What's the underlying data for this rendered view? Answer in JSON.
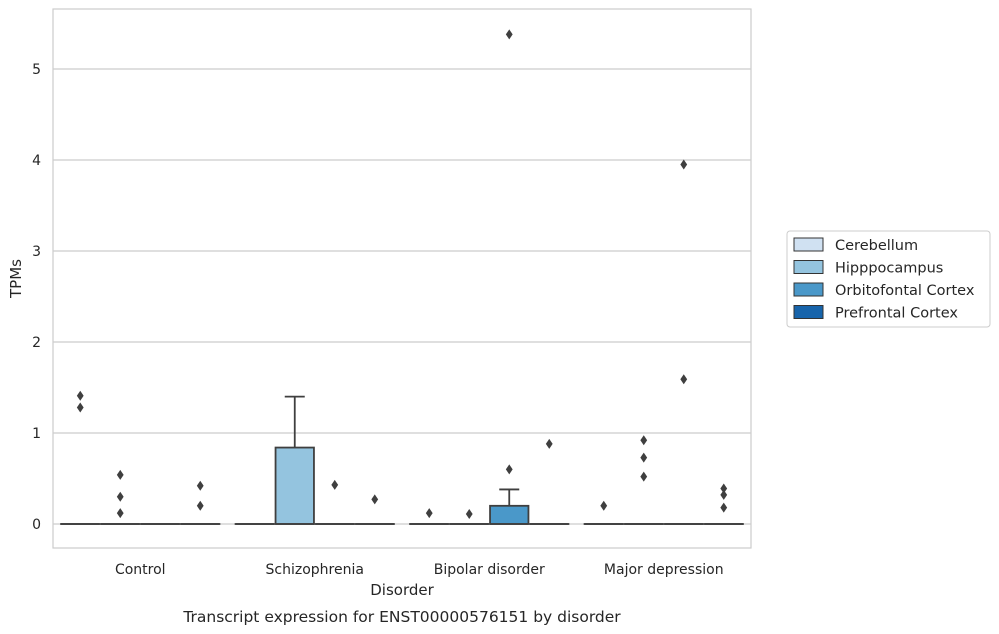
{
  "chart_data": {
    "type": "box",
    "title": "",
    "caption": "Transcript expression for ENST00000576151 by disorder",
    "xlabel": "Disorder",
    "ylabel": "TPMs",
    "ylim": [
      -0.27,
      5.67
    ],
    "yticks": [
      "0",
      "1",
      "2",
      "3",
      "4",
      "5"
    ],
    "grid": "horizontal",
    "legend_placement": "right",
    "categories": [
      "Control",
      "Schizophrenia",
      "Bipolar disorder",
      "Major depression"
    ],
    "series": [
      {
        "name": "Cerebellum",
        "color": "#d0e1f2",
        "boxes": [
          {
            "q1": 0,
            "median": 0,
            "q3": 0,
            "whisker_low": 0,
            "whisker_high": 0,
            "outliers": [
              1.41,
              1.28
            ]
          },
          {
            "q1": 0,
            "median": 0,
            "q3": 0,
            "whisker_low": 0,
            "whisker_high": 0,
            "outliers": []
          },
          {
            "q1": 0,
            "median": 0,
            "q3": 0,
            "whisker_low": 0,
            "whisker_high": 0,
            "outliers": [
              0.12
            ]
          },
          {
            "q1": 0,
            "median": 0,
            "q3": 0,
            "whisker_low": 0,
            "whisker_high": 0,
            "outliers": [
              0.2
            ]
          }
        ]
      },
      {
        "name": "Hipppocampus",
        "color": "#94c4df",
        "boxes": [
          {
            "q1": 0,
            "median": 0,
            "q3": 0,
            "whisker_low": 0,
            "whisker_high": 0,
            "outliers": [
              0.54,
              0.3,
              0.12
            ]
          },
          {
            "q1": 0,
            "median": 0,
            "q3": 0.84,
            "whisker_low": 0,
            "whisker_high": 1.4,
            "outliers": []
          },
          {
            "q1": 0,
            "median": 0,
            "q3": 0,
            "whisker_low": 0,
            "whisker_high": 0,
            "outliers": [
              0.11
            ]
          },
          {
            "q1": 0,
            "median": 0,
            "q3": 0,
            "whisker_low": 0,
            "whisker_high": 0,
            "outliers": [
              0.92,
              0.73,
              0.52
            ]
          }
        ]
      },
      {
        "name": "Orbitofontal Cortex",
        "color": "#4a98c9",
        "boxes": [
          {
            "q1": 0,
            "median": 0,
            "q3": 0,
            "whisker_low": 0,
            "whisker_high": 0,
            "outliers": []
          },
          {
            "q1": 0,
            "median": 0,
            "q3": 0,
            "whisker_low": 0,
            "whisker_high": 0,
            "outliers": [
              0.43
            ]
          },
          {
            "q1": 0,
            "median": 0,
            "q3": 0.2,
            "whisker_low": 0,
            "whisker_high": 0.38,
            "outliers": [
              5.38,
              0.6
            ]
          },
          {
            "q1": 0,
            "median": 0,
            "q3": 0,
            "whisker_low": 0,
            "whisker_high": 0,
            "outliers": [
              3.95,
              1.59
            ]
          }
        ]
      },
      {
        "name": "Prefrontal Cortex",
        "color": "#1764ab",
        "boxes": [
          {
            "q1": 0,
            "median": 0,
            "q3": 0,
            "whisker_low": 0,
            "whisker_high": 0,
            "outliers": [
              0.42,
              0.2
            ]
          },
          {
            "q1": 0,
            "median": 0,
            "q3": 0,
            "whisker_low": 0,
            "whisker_high": 0,
            "outliers": [
              0.27
            ]
          },
          {
            "q1": 0,
            "median": 0,
            "q3": 0,
            "whisker_low": 0,
            "whisker_high": 0,
            "outliers": [
              0.88
            ]
          },
          {
            "q1": 0,
            "median": 0,
            "q3": 0,
            "whisker_low": 0,
            "whisker_high": 0,
            "outliers": [
              0.39,
              0.32,
              0.18
            ]
          }
        ]
      }
    ]
  }
}
